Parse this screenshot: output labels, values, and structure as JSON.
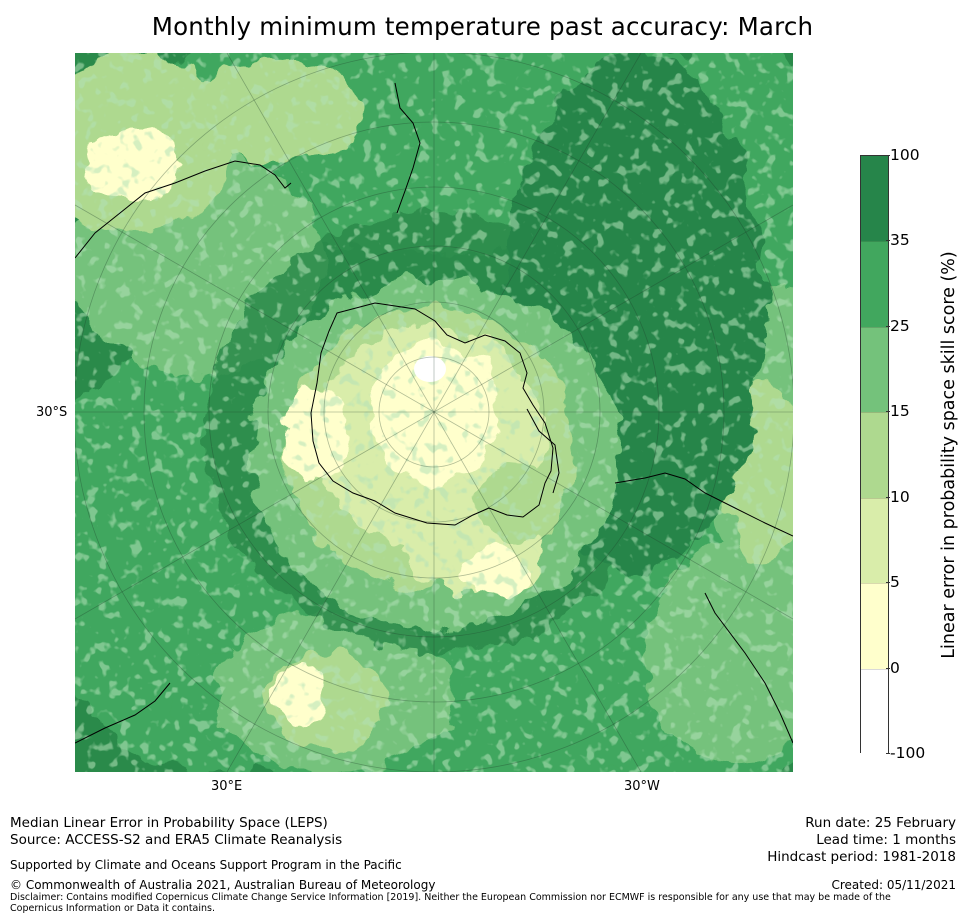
{
  "title": "Monthly minimum temperature past accuracy: March",
  "map": {
    "projection": "south-polar-stereographic",
    "axis_labels": {
      "lat": "30°S",
      "lon_left": "30°E",
      "lon_right": "30°W"
    },
    "palette": {
      "very_high": "#26854a",
      "high": "#41a75e",
      "mid_high": "#74c27b",
      "mid": "#aed98f",
      "low": "#d9edaa",
      "very_low": "#ffffcc",
      "none": "#ffffff"
    }
  },
  "colorbar": {
    "label": "Linear error in probability space skill score (%)",
    "ticks": [
      "100",
      "35",
      "25",
      "15",
      "10",
      "5",
      "0",
      "-100"
    ],
    "bins": [
      {
        "range": "35 to 100",
        "color": "#26854a"
      },
      {
        "range": "25 to 35",
        "color": "#41a75e"
      },
      {
        "range": "15 to 25",
        "color": "#74c27b"
      },
      {
        "range": "10 to 15",
        "color": "#aed98f"
      },
      {
        "range": "5 to 10",
        "color": "#d9edaa"
      },
      {
        "range": "0 to 5",
        "color": "#ffffcc"
      },
      {
        "range": "-100 to 0",
        "color": "#ffffff"
      }
    ]
  },
  "footer": {
    "line1": "Median Linear Error in Probability Space (LEPS)",
    "line2": "Source: ACCESS-S2 and ERA5 Climate Reanalysis",
    "support": "Supported by Climate and Oceans Support Program in the Pacific",
    "copyright": "© Commonwealth of Australia 2021, Australian Bureau of Meteorology",
    "disclaimer": "Disclaimer: Contains modified Copernicus Climate Change Service Information [2019]. Neither the European Commission nor ECMWF is responsible for any use that may be made of the Copernicus Information or Data it contains.",
    "run_date": "Run date: 25 February",
    "lead_time": "Lead time: 1 months",
    "hindcast": "Hindcast period: 1981-2018",
    "created": "Created: 05/11/2021"
  }
}
